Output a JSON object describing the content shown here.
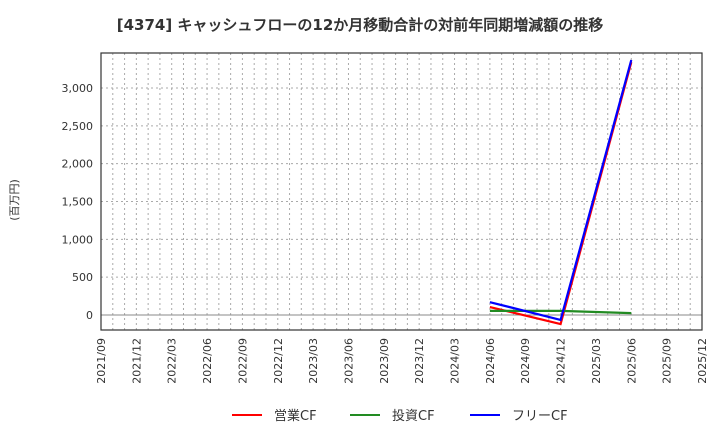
{
  "title": "[4374]  キャッシュフローの12か月移動合計の対前年同期増減額の推移",
  "chart_data": {
    "type": "line",
    "title": "[4374]  キャッシュフローの12か月移動合計の対前年同期増減額の推移",
    "xlabel": "",
    "ylabel": "(百万円)",
    "ylim": [
      -200,
      3450
    ],
    "grid": true,
    "legend_position": "bottom",
    "x_ticks": [
      "2021/09",
      "2021/12",
      "2022/03",
      "2022/06",
      "2022/09",
      "2022/12",
      "2023/03",
      "2023/06",
      "2023/09",
      "2023/12",
      "2024/03",
      "2024/06",
      "2024/09",
      "2024/12",
      "2025/03",
      "2025/06",
      "2025/09",
      "2025/12"
    ],
    "y_ticks": [
      0,
      500,
      1000,
      1500,
      2000,
      2500,
      3000
    ],
    "y_tick_labels": [
      "0",
      "500",
      "1,000",
      "1,500",
      "2,000",
      "2,500",
      "3,000"
    ],
    "x": [
      "2024/06",
      "2024/12",
      "2025/06"
    ],
    "series": [
      {
        "name": "営業CF",
        "color": "#ff0000",
        "values": [
          105,
          -120,
          3340
        ]
      },
      {
        "name": "投資CF",
        "color": "#228b22",
        "values": [
          55,
          55,
          25
        ]
      },
      {
        "name": "フリーCF",
        "color": "#0000ff",
        "values": [
          170,
          -65,
          3370
        ]
      }
    ]
  }
}
